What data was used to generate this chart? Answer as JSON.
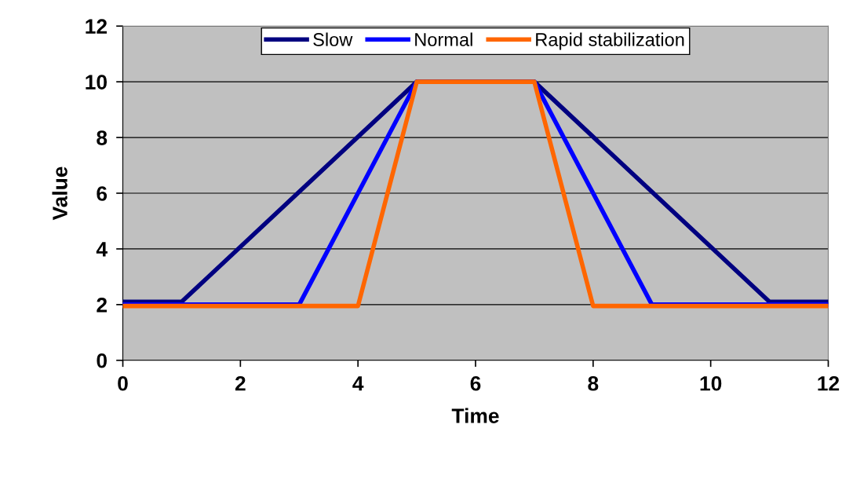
{
  "chart_data": {
    "type": "line",
    "xlabel": "Time",
    "ylabel": "Value",
    "xlim": [
      0,
      12
    ],
    "xticks": [
      0,
      2,
      4,
      6,
      8,
      10,
      12
    ],
    "ylim": [
      0,
      12
    ],
    "yticks": [
      0,
      2,
      4,
      6,
      8,
      10,
      12
    ],
    "grid": "y",
    "legend": "top",
    "marker": "none",
    "line_style": "solid",
    "series": [
      {
        "name": "Slow",
        "color": "#000080",
        "x": [
          0,
          1,
          5,
          7,
          11,
          12
        ],
        "values": [
          2.1,
          2.1,
          10,
          10,
          2.1,
          2.1
        ]
      },
      {
        "name": "Normal",
        "color": "#0000ff",
        "x": [
          0,
          3,
          5,
          7,
          9,
          12
        ],
        "values": [
          2,
          2,
          10,
          10,
          2,
          2
        ]
      },
      {
        "name": "Rapid stabilization",
        "color": "#ff6600",
        "x": [
          0,
          4,
          5,
          7,
          8,
          12
        ],
        "values": [
          1.95,
          1.95,
          10,
          10,
          1.95,
          1.95
        ]
      }
    ]
  }
}
